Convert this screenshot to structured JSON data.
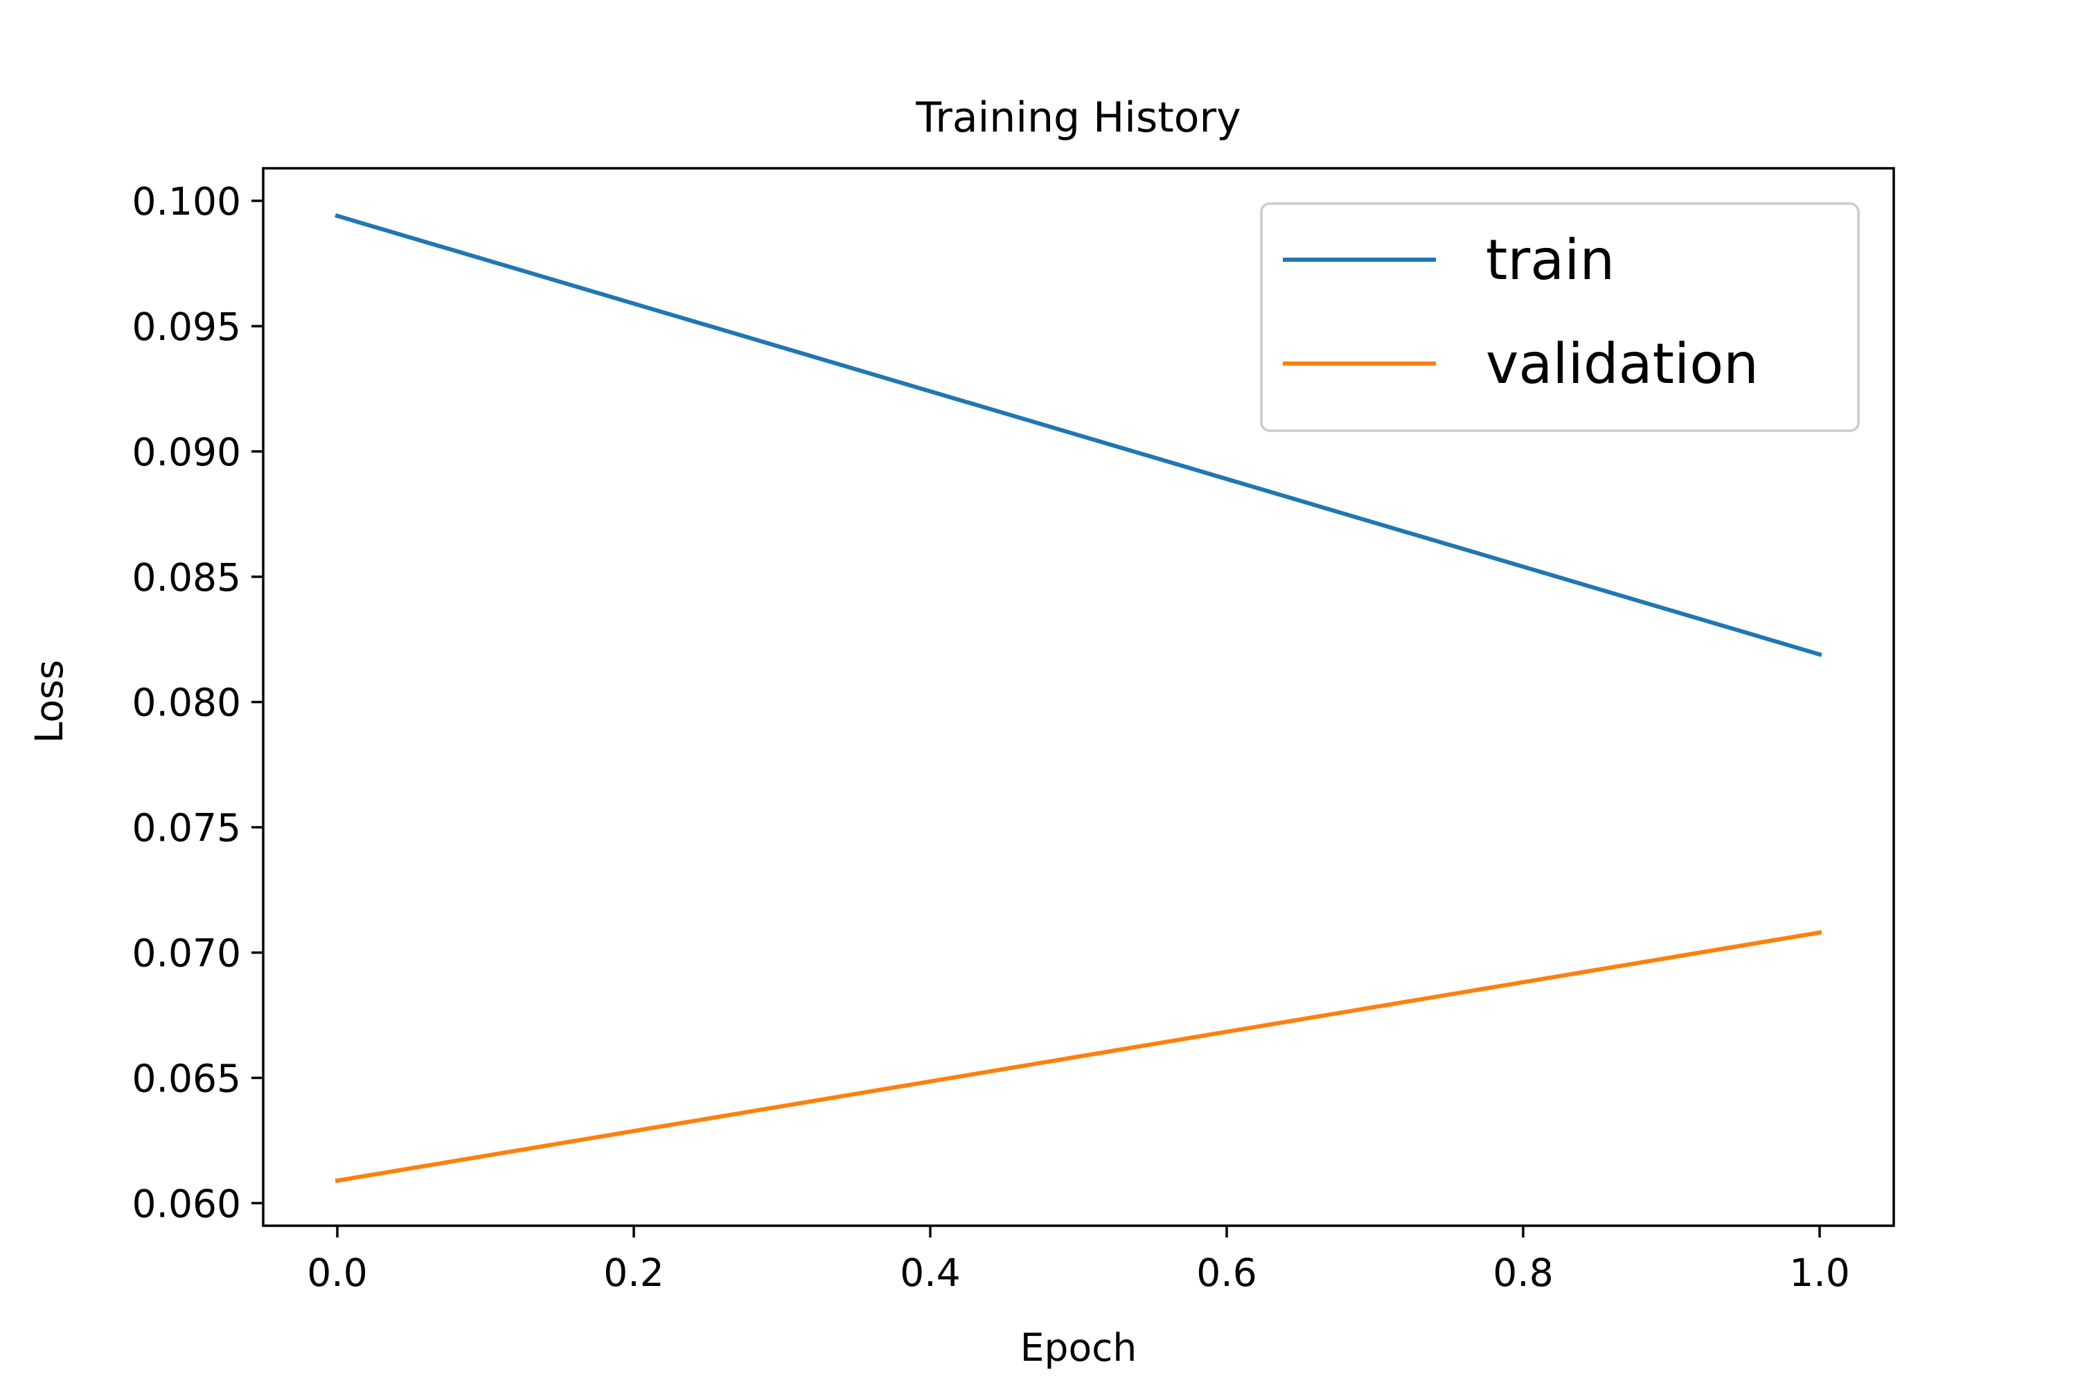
{
  "chart_data": {
    "type": "line",
    "title": "Training History",
    "xlabel": "Epoch",
    "ylabel": "Loss",
    "x": [
      0,
      1
    ],
    "xlim": [
      -0.05,
      1.05
    ],
    "ylim": [
      0.0591,
      0.1013
    ],
    "xticks": [
      0.0,
      0.2,
      0.4,
      0.6,
      0.8,
      1.0
    ],
    "xtick_labels": [
      "0.0",
      "0.2",
      "0.4",
      "0.6",
      "0.8",
      "1.0"
    ],
    "yticks": [
      0.06,
      0.065,
      0.07,
      0.075,
      0.08,
      0.085,
      0.09,
      0.095,
      0.1
    ],
    "ytick_labels": [
      "0.060",
      "0.065",
      "0.070",
      "0.075",
      "0.080",
      "0.085",
      "0.090",
      "0.095",
      "0.100"
    ],
    "grid": false,
    "legend_position": "top-right",
    "series": [
      {
        "name": "train",
        "values": [
          0.0994,
          0.0819
        ],
        "color": "#1f77b4"
      },
      {
        "name": "validation",
        "values": [
          0.0609,
          0.0708
        ],
        "color": "#ff7f0e"
      }
    ]
  }
}
